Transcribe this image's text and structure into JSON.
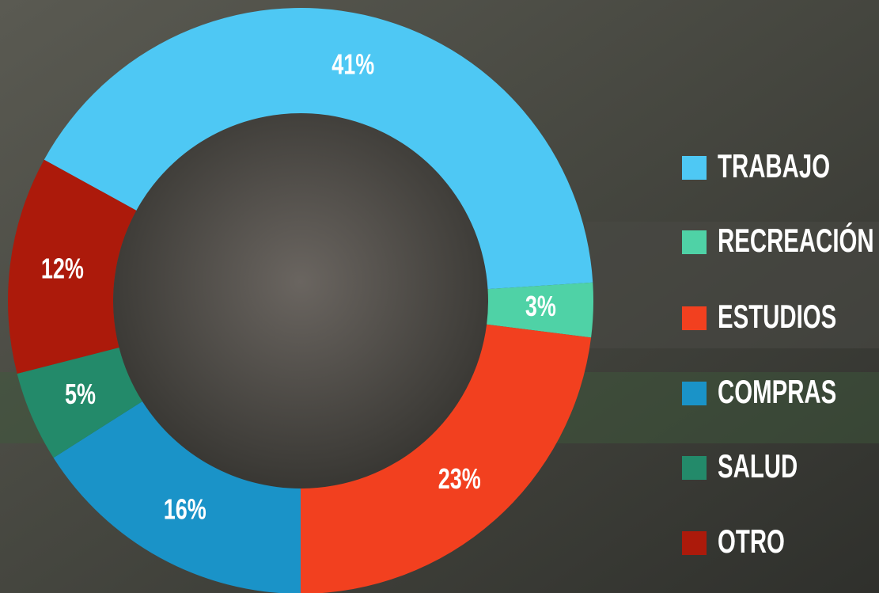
{
  "chart_data": {
    "type": "pie",
    "categories": [
      "TRABAJO",
      "RECREACIÓN",
      "ESTUDIOS",
      "COMPRAS",
      "SALUD",
      "OTRO"
    ],
    "values": [
      41,
      3,
      23,
      16,
      5,
      12
    ],
    "value_labels": [
      "41%",
      "3%",
      "23%",
      "16%",
      "5%",
      "12%"
    ],
    "colors": [
      "#4ec8f4",
      "#4fd2a6",
      "#f2401f",
      "#1a93c8",
      "#238a6a",
      "#ac1a0b"
    ],
    "donut": true,
    "legend": "right"
  }
}
